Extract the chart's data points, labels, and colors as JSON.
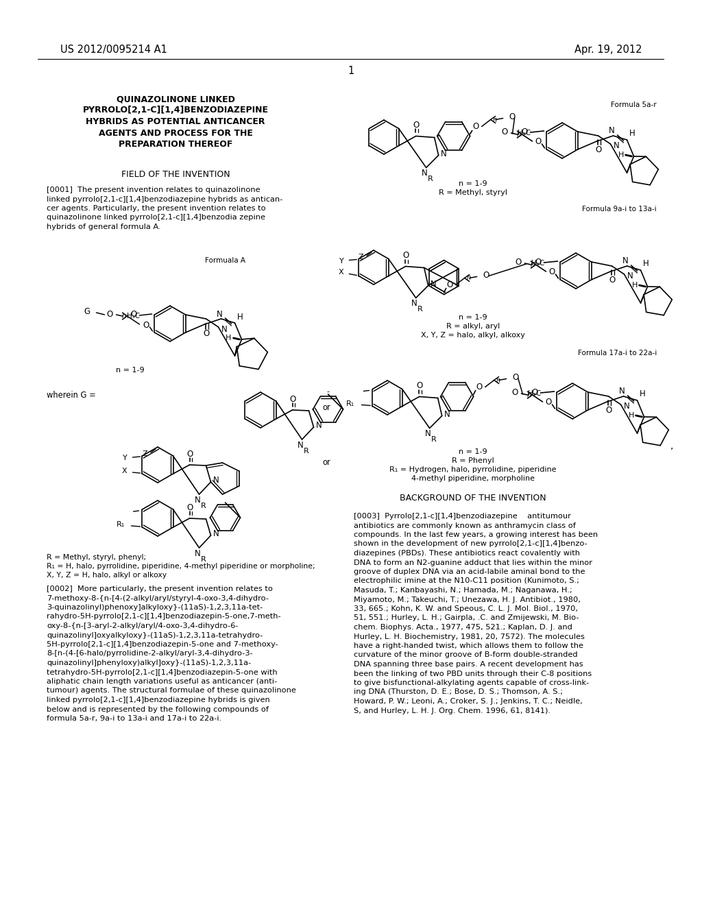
{
  "bg": "#ffffff",
  "patent_number": "US 2012/0095214 A1",
  "patent_date": "Apr. 19, 2012",
  "page_number": "1",
  "title": [
    "QUINAZOLINONE LINKED",
    "PYRROLO[2,1-C][1,4]BENZODIAZEPINE",
    "HYBRIDS AS POTENTIAL ANTICANCER",
    "AGENTS AND PROCESS FOR THE",
    "PREPARATION THEREOF"
  ],
  "field_header": "FIELD OF THE INVENTION",
  "para1_lines": [
    "[0001]  The present invention relates to quinazolinone",
    "linked pyrrolo[2,1-c][1,4]benzodiazepine hybrids as antican-",
    "cer agents. Particularly, the present invention relates to",
    "quinazolinone linked pyrrolo[2,1-c][1,4]benzodia zepine",
    "hybrids of general formula A."
  ],
  "formula_a_label": "Formuala A",
  "formula_a_n": "n = 1-9",
  "wherein_g": "wherein G =",
  "or1": "or",
  "or2": "or",
  "r_labels": "R = Methyl, styryl, phenyl;",
  "r1_labels": "R₁ = H, halo, pyrrolidine, piperidine, 4-methyl piperidine or morpholine;",
  "xyz_labels": "X, Y, Z = H, halo, alkyl or alkoxy",
  "para2_lines": [
    "[0002]  More particularly, the present invention relates to",
    "7-methoxy-8-{n-[4-(2-alkyl/aryl/styryl-4-oxo-3,4-dihydro-",
    "3-quinazolinyl)phenoxy]alkyloxy}-(11aS)-1,2,3,11a-tet-",
    "rahydro-5H-pyrrolo[2,1-c][1,4]benzodiazepin-5-one,7-meth-",
    "oxy-8-{n-[3-aryl-2-alkyl/aryl/4-oxo-3,4-dihydro-6-",
    "quinazolinyl]oxyalkyloxy}-(11aS)-1,2,3,11a-tetrahydro-",
    "5H-pyrrolo[2,1-c][1,4]benzodiazepin-5-one and 7-methoxy-",
    "8-[n-(4-[6-halo/pyrrolidine-2-alkyl/aryl-3,4-dihydro-3-",
    "quinazolinyl]phenyloxy)alkyl]oxy}-(11aS)-1,2,3,11a-",
    "tetrahydro-5H-pyrrolo[2,1-c][1,4]benzodiazepin-5-one with",
    "aliphatic chain length variations useful as anticancer (anti-",
    "tumour) agents. The structural formulae of these quinazolinone",
    "linked pyrrolo[2,1-c][1,4]benzodiazepine hybrids is given",
    "below and is represented by the following compounds of",
    "formula 5a-r, 9a-i to 13a-i and 17a-i to 22a-i."
  ],
  "formula5ar_label": "Formula 5a-r",
  "formula5ar_n": "n = 1-9",
  "formula5ar_r": "R = Methyl, styryl",
  "formula9a_label": "Formula 9a-i to 13a-i",
  "formula9a_n": "n = 1-9",
  "formula9a_r": "R = alkyl, aryl",
  "formula9a_xyz": "X, Y, Z = halo, alkyl, alkoxy",
  "formula17a_label": "Formula 17a-i to 22a-i",
  "formula17a_n": "n = 1-9",
  "formula17a_r": "R = Phenyl",
  "formula17a_r1": "R₁ = Hydrogen, halo, pyrrolidine, piperidine",
  "formula17a_r1b": "4-methyl piperidine, morpholine",
  "bg_header": "BACKGROUND OF THE INVENTION",
  "para3_lines": [
    "[0003]  Pyrrolo[2,1-c][1,4]benzodiazepine    antitumour",
    "antibiotics are commonly known as anthramycin class of",
    "compounds. In the last few years, a growing interest has been",
    "shown in the development of new pyrrolo[2,1-c][1,4]benzo-",
    "diazepines (PBDs). These antibiotics react covalently with",
    "DNA to form an N2-guanine adduct that lies within the minor",
    "groove of duplex DNA via an acid-labile aminal bond to the",
    "electrophilic imine at the N10-C11 position (Kunimoto, S.;",
    "Masuda, T.; Kanbayashi, N.; Hamada, M.; Naganawa, H.;",
    "Miyamoto, M.; Takeuchi, T.; Unezawa, H. J. Antibiot., 1980,",
    "33, 665.; Kohn, K. W. and Speous, C. L. J. Mol. Biol., 1970,",
    "51, 551.; Hurley, L. H.; Gairpla, .C. and Zmijewski, M. Bio-",
    "chem. Biophys. Acta., 1977, 475, 521.; Kaplan, D. J. and",
    "Hurley, L. H. Biochemistry, 1981, 20, 7572). The molecules",
    "have a right-handed twist, which allows them to follow the",
    "curvature of the minor groove of B-form double-stranded",
    "DNA spanning three base pairs. A recent development has",
    "been the linking of two PBD units through their C-8 positions",
    "to give bisfunctional-alkylating agents capable of cross-link-",
    "ing DNA (Thurston, D. E.; Bose, D. S.; Thomson, A. S.;",
    "Howard, P. W.; Leoni, A.; Croker, S. J.; Jenkins, T. C.; Neidle,",
    "S, and Hurley, L. H. J. Org. Chem. 1996, 61, 8141)."
  ]
}
